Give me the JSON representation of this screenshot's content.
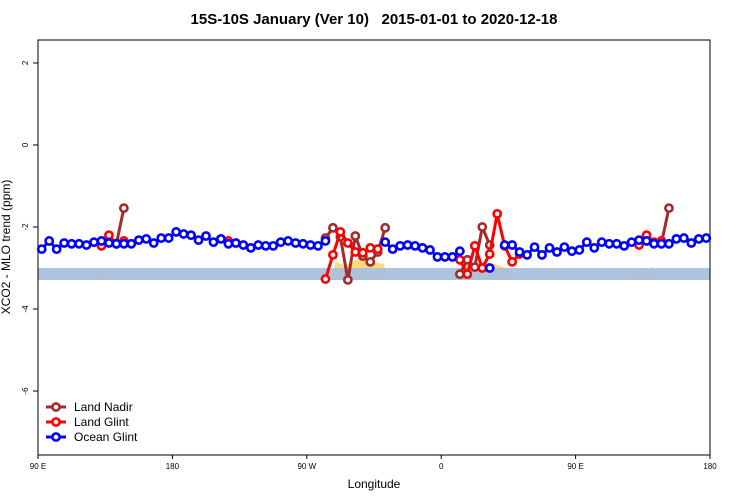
{
  "chart_data": {
    "type": "line",
    "title": "15S-10S January (Ver 10)   2015-01-01 to 2020-12-18",
    "x_label": "Longitude",
    "y_label": "XCO2 - MLO trend (ppm)",
    "xlim": [
      90,
      540
    ],
    "xticks": [
      {
        "value": 90,
        "label": "90 E"
      },
      180,
      {
        "value": 270,
        "label": "90 W"
      },
      {
        "value": 360,
        "label": "0"
      },
      {
        "value": 450,
        "label": "90 E"
      },
      {
        "value": 540,
        "label": "180"
      }
    ],
    "ylim": [
      -7.56,
      2.56
    ],
    "yticks": [
      2,
      0,
      -2,
      -4,
      -6
    ],
    "legend": "bottom-left",
    "x": [
      92.5,
      97.5,
      102.5,
      107.5,
      112.5,
      117.5,
      122.5,
      127.5,
      132.5,
      137.5,
      142.5,
      147.5,
      152.5,
      157.5,
      162.5,
      167.5,
      172.5,
      177.5,
      182.5,
      187.5,
      192.5,
      197.5,
      202.5,
      207.5,
      212.5,
      217.5,
      222.5,
      227.5,
      232.5,
      237.5,
      242.5,
      247.5,
      252.5,
      257.5,
      262.5,
      267.5,
      272.5,
      277.5,
      282.5,
      287.5,
      292.5,
      297.5,
      302.5,
      307.5,
      312.5,
      317.5,
      322.5,
      327.5,
      332.5,
      337.5,
      342.5,
      347.5,
      352.5,
      357.5,
      362.5,
      367.5,
      372.5,
      377.5,
      382.5,
      387.5,
      392.5,
      397.5,
      402.5,
      407.5,
      412.5,
      417.5,
      422.5,
      427.5,
      432.5,
      437.5,
      442.5,
      447.5,
      452.5,
      457.5,
      462.5,
      467.5,
      472.5,
      477.5,
      482.5,
      487.5,
      492.5,
      497.5,
      502.5,
      507.5,
      512.5,
      517.5,
      522.5,
      527.5,
      532.5,
      537.5
    ],
    "series": [
      {
        "name": "Land Nadir",
        "color": "#a52a2a",
        "values": [
          null,
          null,
          null,
          null,
          null,
          null,
          null,
          null,
          null,
          null,
          -2.41,
          -1.54,
          null,
          null,
          null,
          null,
          null,
          null,
          null,
          null,
          null,
          null,
          null,
          null,
          null,
          null,
          null,
          null,
          null,
          null,
          null,
          null,
          null,
          null,
          null,
          null,
          null,
          null,
          -2.27,
          -2.02,
          -2.24,
          -3.29,
          -2.22,
          -2.71,
          -2.85,
          -2.61,
          -2.02,
          null,
          null,
          null,
          null,
          null,
          null,
          null,
          null,
          null,
          -3.15,
          -2.8,
          -2.98,
          -2.0,
          -2.44,
          null,
          null,
          null,
          null,
          null,
          null,
          null,
          null,
          null,
          null,
          null,
          null,
          null,
          null,
          null,
          null,
          null,
          null,
          null,
          null,
          null,
          null,
          -2.39,
          -1.54,
          null,
          null,
          null,
          null,
          null
        ]
      },
      {
        "name": "Land Glint",
        "color": "#ff0000",
        "values": [
          null,
          null,
          null,
          null,
          null,
          null,
          null,
          null,
          -2.46,
          -2.2,
          -2.41,
          -2.34,
          null,
          null,
          null,
          null,
          null,
          null,
          null,
          null,
          null,
          null,
          null,
          null,
          null,
          -2.34,
          null,
          null,
          null,
          null,
          null,
          null,
          null,
          null,
          null,
          null,
          null,
          null,
          -3.27,
          -2.68,
          -2.12,
          -2.39,
          -2.61,
          -2.63,
          -2.51,
          -2.54,
          null,
          null,
          null,
          null,
          null,
          null,
          null,
          null,
          null,
          null,
          -2.8,
          -3.15,
          -2.46,
          -3.0,
          -2.66,
          -1.68,
          -2.46,
          -2.85,
          -2.66,
          null,
          null,
          null,
          null,
          null,
          null,
          null,
          null,
          null,
          null,
          null,
          null,
          null,
          null,
          null,
          -2.44,
          -2.2,
          -2.37,
          -2.34,
          null,
          null,
          null,
          null,
          null,
          null
        ]
      },
      {
        "name": "Ocean Glint",
        "color": "#0000ff",
        "values": [
          -2.54,
          -2.34,
          -2.54,
          -2.39,
          -2.41,
          -2.41,
          -2.44,
          -2.37,
          -2.34,
          -2.39,
          -2.41,
          -2.41,
          -2.41,
          -2.32,
          -2.29,
          -2.39,
          -2.27,
          -2.27,
          -2.12,
          -2.17,
          -2.2,
          -2.32,
          -2.22,
          -2.37,
          -2.29,
          -2.41,
          -2.39,
          -2.44,
          -2.51,
          -2.44,
          -2.46,
          -2.46,
          -2.37,
          -2.34,
          -2.39,
          -2.41,
          -2.44,
          -2.46,
          -2.34,
          null,
          null,
          null,
          null,
          null,
          null,
          null,
          -2.37,
          -2.54,
          -2.46,
          -2.44,
          -2.46,
          -2.51,
          -2.56,
          -2.73,
          -2.73,
          -2.73,
          -2.59,
          null,
          null,
          null,
          -3.0,
          null,
          -2.44,
          -2.44,
          -2.61,
          -2.68,
          -2.49,
          -2.68,
          -2.51,
          -2.61,
          -2.49,
          -2.59,
          -2.56,
          -2.37,
          -2.51,
          -2.37,
          -2.41,
          -2.41,
          -2.46,
          -2.37,
          -2.32,
          -2.34,
          -2.41,
          -2.41,
          -2.41,
          -2.29,
          -2.27,
          -2.39,
          -2.29,
          -2.27
        ]
      }
    ]
  }
}
